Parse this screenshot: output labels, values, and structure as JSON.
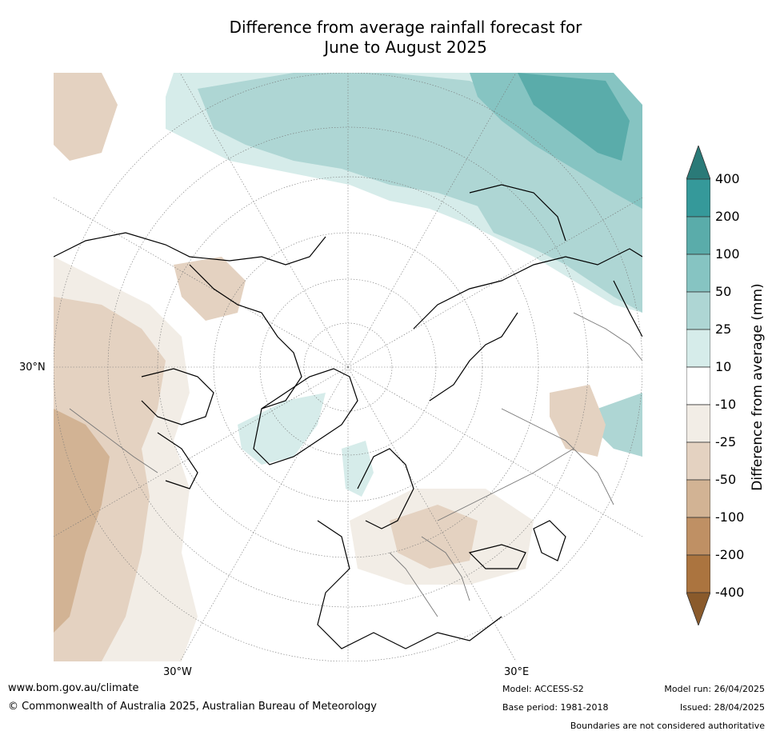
{
  "title": {
    "line1": "Difference from average rainfall forecast for",
    "line2": "June to August 2025"
  },
  "map": {
    "projection": "north polar stereographic",
    "lat_labels": [
      "30°N"
    ],
    "lon_labels": [
      "30°W",
      "30°E"
    ]
  },
  "colorbar": {
    "label": "Difference from average (mm)",
    "extend": "both",
    "ticks": [
      "400",
      "200",
      "100",
      "50",
      "25",
      "10",
      "-10",
      "-25",
      "-50",
      "-100",
      "-200",
      "-400"
    ],
    "colors": {
      "above_400": "#2a7a78",
      "200_400": "#35999a",
      "100_200": "#5aacaa",
      "50_100": "#86c4c2",
      "25_50": "#aed6d4",
      "10_25": "#d6ecea",
      "neutral": "#ffffff",
      "neg10_25": "#f2ede6",
      "neg25_50": "#e4d2c1",
      "neg50_100": "#d2b394",
      "neg100_200": "#bf9064",
      "neg200_400": "#ab743f",
      "below_400": "#8a5a2b"
    }
  },
  "footer": {
    "website": "www.bom.gov.au/climate",
    "copyright": "© Commonwealth of Australia 2025, Australian Bureau of Meteorology",
    "model": "Model: ACCESS-S2",
    "base_period": "Base period: 1981-2018",
    "model_run": "Model run: 26/04/2025",
    "issued": "Issued: 28/04/2025",
    "disclaimer": "Boundaries are not considered authoritative"
  }
}
